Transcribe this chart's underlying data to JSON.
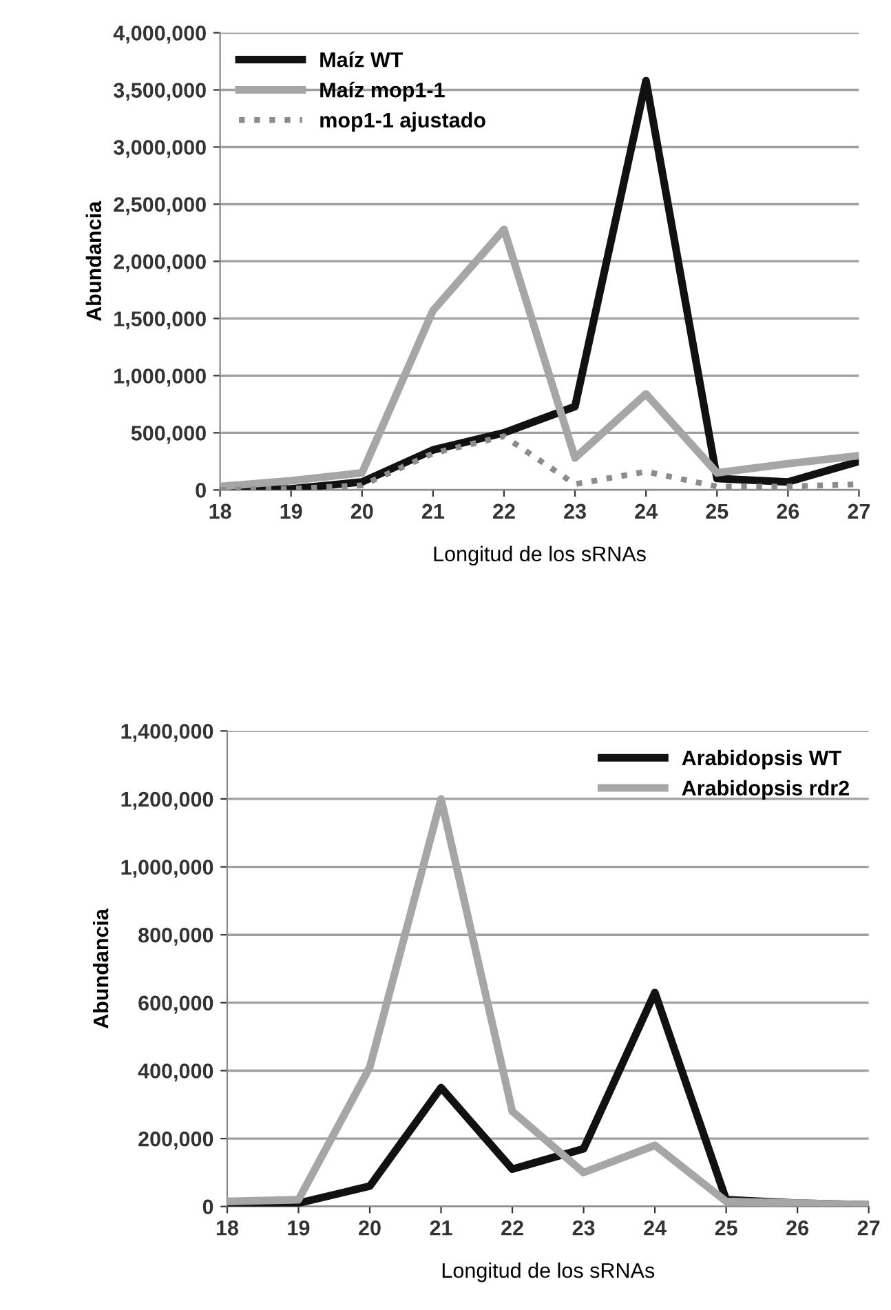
{
  "chart_data": [
    {
      "type": "line",
      "xlabel": "Longitud de los sRNAs",
      "ylabel": "Abundancia",
      "categories": [
        "18",
        "19",
        "20",
        "21",
        "22",
        "23",
        "24",
        "25",
        "26",
        "27"
      ],
      "ylim": [
        0,
        4000000
      ],
      "yticks": [
        {
          "value": 0,
          "label": "0"
        },
        {
          "value": 500000,
          "label": "500,000"
        },
        {
          "value": 1000000,
          "label": "1,000,000"
        },
        {
          "value": 1500000,
          "label": "1,500,000"
        },
        {
          "value": 2000000,
          "label": "2,000,000"
        },
        {
          "value": 2500000,
          "label": "2,500,000"
        },
        {
          "value": 3000000,
          "label": "3,000,000"
        },
        {
          "value": 3500000,
          "label": "3,500,000"
        },
        {
          "value": 4000000,
          "label": "4,000,000"
        }
      ],
      "grid": "y",
      "legend": "top left",
      "series": [
        {
          "name": "Maíz WT",
          "color": "#111111",
          "values": [
            0,
            10000,
            70000,
            350000,
            500000,
            730000,
            3580000,
            100000,
            70000,
            250000
          ]
        },
        {
          "name": "Maíz mop1-1",
          "color": "#a6a6a6",
          "values": [
            30000,
            80000,
            150000,
            1570000,
            2280000,
            280000,
            840000,
            150000,
            230000,
            300000
          ]
        },
        {
          "name": "mop1-1 ajustado",
          "color": "#8c8c8c",
          "line_style": "dotted",
          "values": [
            0,
            10000,
            40000,
            320000,
            470000,
            50000,
            160000,
            30000,
            30000,
            50000
          ]
        }
      ]
    },
    {
      "type": "line",
      "xlabel": "Longitud de los sRNAs",
      "ylabel": "Abundancia",
      "categories": [
        "18",
        "19",
        "20",
        "21",
        "22",
        "23",
        "24",
        "25",
        "26",
        "27"
      ],
      "ylim": [
        0,
        1400000
      ],
      "yticks": [
        {
          "value": 0,
          "label": "0"
        },
        {
          "value": 200000,
          "label": "200,000"
        },
        {
          "value": 400000,
          "label": "400,000"
        },
        {
          "value": 600000,
          "label": "600,000"
        },
        {
          "value": 800000,
          "label": "800,000"
        },
        {
          "value": 1000000,
          "label": "1,000,000"
        },
        {
          "value": 1200000,
          "label": "1,200,000"
        },
        {
          "value": 1400000,
          "label": "1,400,000"
        }
      ],
      "grid": "y",
      "legend": "top right",
      "series": [
        {
          "name": "Arabidopsis WT",
          "color": "#111111",
          "values": [
            10000,
            10000,
            60000,
            350000,
            110000,
            170000,
            630000,
            20000,
            10000,
            5000
          ]
        },
        {
          "name": "Arabidopsis rdr2",
          "color": "#a6a6a6",
          "values": [
            15000,
            20000,
            410000,
            1200000,
            280000,
            100000,
            180000,
            15000,
            10000,
            5000
          ]
        }
      ]
    }
  ]
}
